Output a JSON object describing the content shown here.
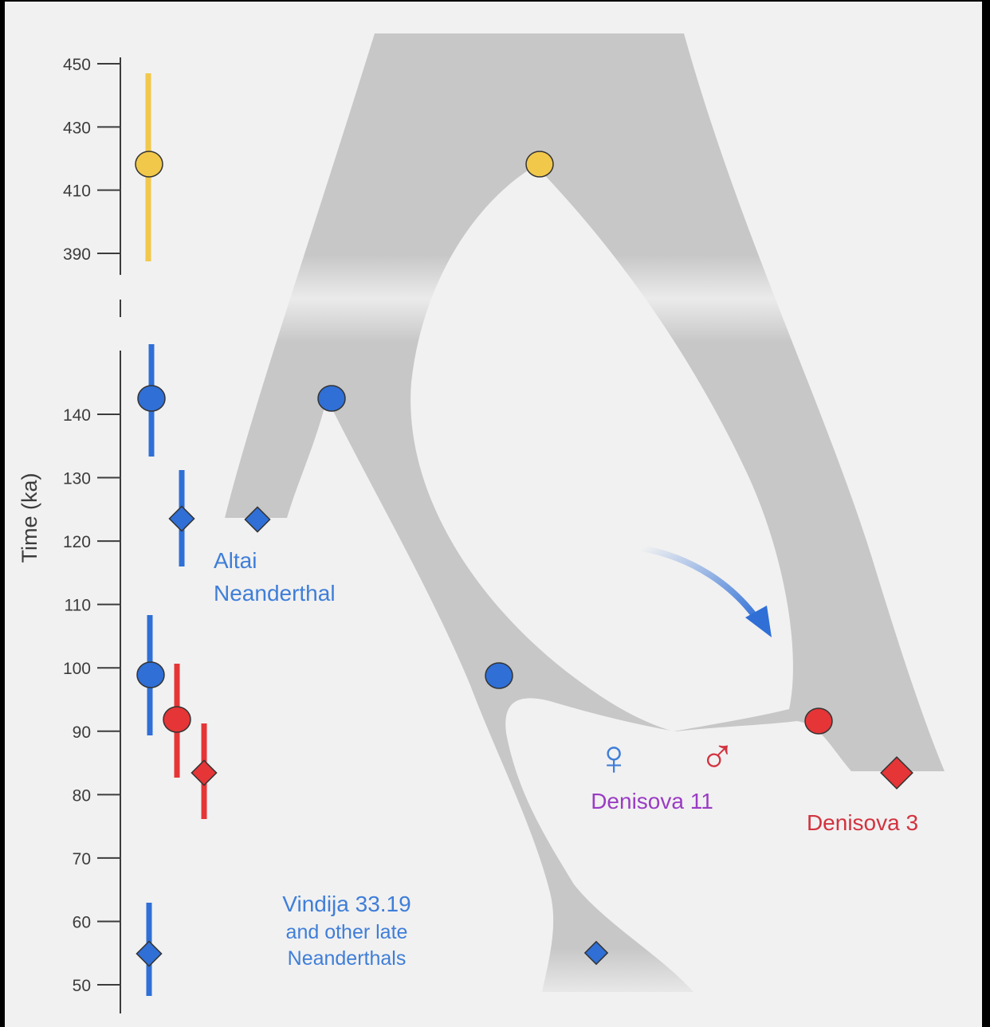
{
  "axis": {
    "title": "Time (ka)",
    "upper_ticks": [
      "450",
      "430",
      "410",
      "390"
    ],
    "lower_ticks": [
      "140",
      "130",
      "120",
      "110",
      "100",
      "90",
      "80",
      "70",
      "60",
      "50"
    ]
  },
  "labels": {
    "altai_line1": "Altai",
    "altai_line2": "Neanderthal",
    "vindija_line1": "Vindija 33.19",
    "vindija_line2": "and other late",
    "vindija_line3": "Neanderthals",
    "denisova11": "Denisova 11",
    "denisova3": "Denisova 3",
    "female_symbol": "♀",
    "male_symbol": "♂"
  },
  "colors": {
    "neanderthal": "#2f6fd6",
    "denisovan": "#e53537",
    "ancestor": "#f2c84b",
    "tree": "#c7c7c7",
    "hybrid_label": "#9a3cc4"
  }
}
